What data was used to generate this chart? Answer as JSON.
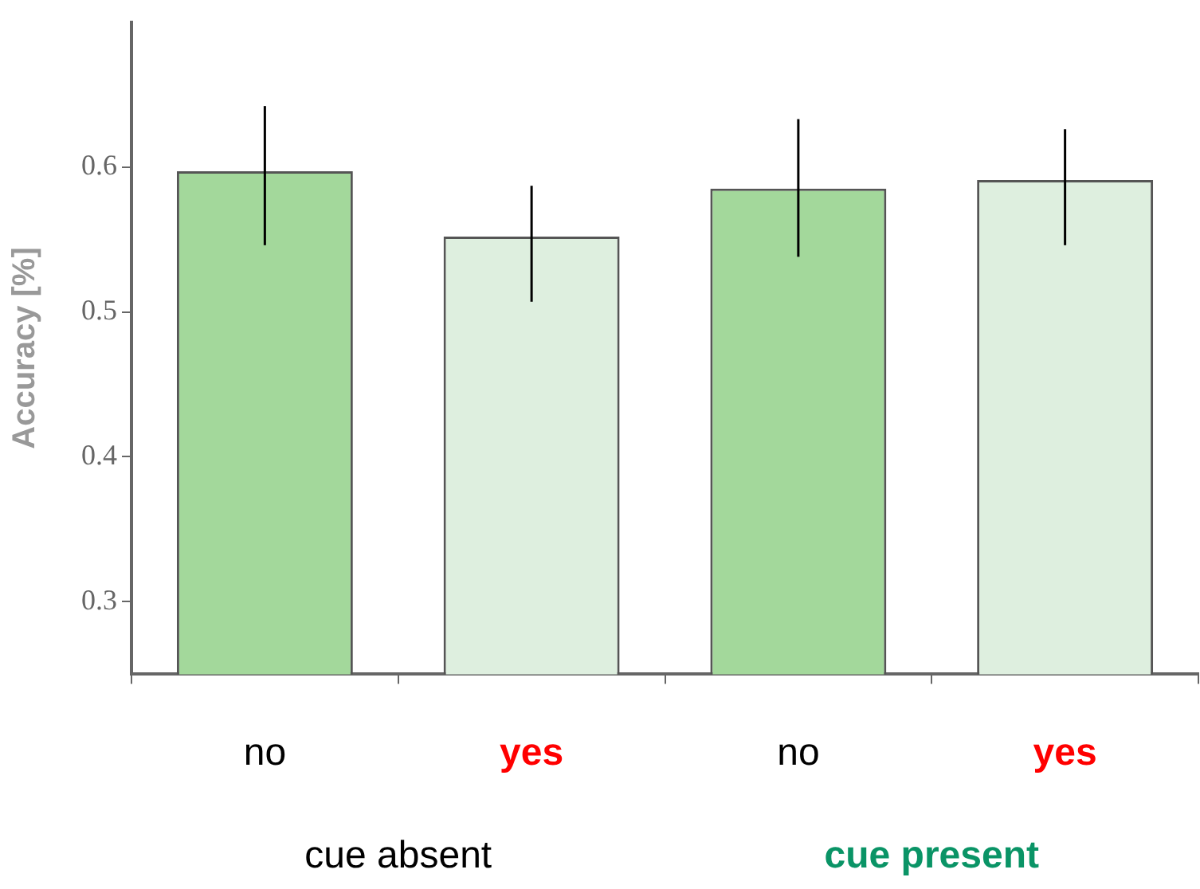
{
  "chart_data": {
    "type": "bar",
    "ylabel": "Accuracy [%]",
    "categories": [
      "no",
      "yes",
      "no",
      "yes"
    ],
    "values": [
      0.597,
      0.552,
      0.585,
      0.591
    ],
    "colors": [
      "#a3d89b",
      "#deefdf",
      "#a3d89b",
      "#deefdf"
    ],
    "errors": [
      [
        0.546,
        0.642
      ],
      [
        0.507,
        0.587
      ],
      [
        0.538,
        0.633
      ],
      [
        0.546,
        0.626
      ]
    ],
    "ylim": [
      0.25,
      0.7
    ],
    "yticks": [
      0.3,
      0.4,
      0.5,
      0.6
    ],
    "grid": false,
    "legend": false,
    "annotations": [
      "cue absent",
      "cue present"
    ]
  }
}
